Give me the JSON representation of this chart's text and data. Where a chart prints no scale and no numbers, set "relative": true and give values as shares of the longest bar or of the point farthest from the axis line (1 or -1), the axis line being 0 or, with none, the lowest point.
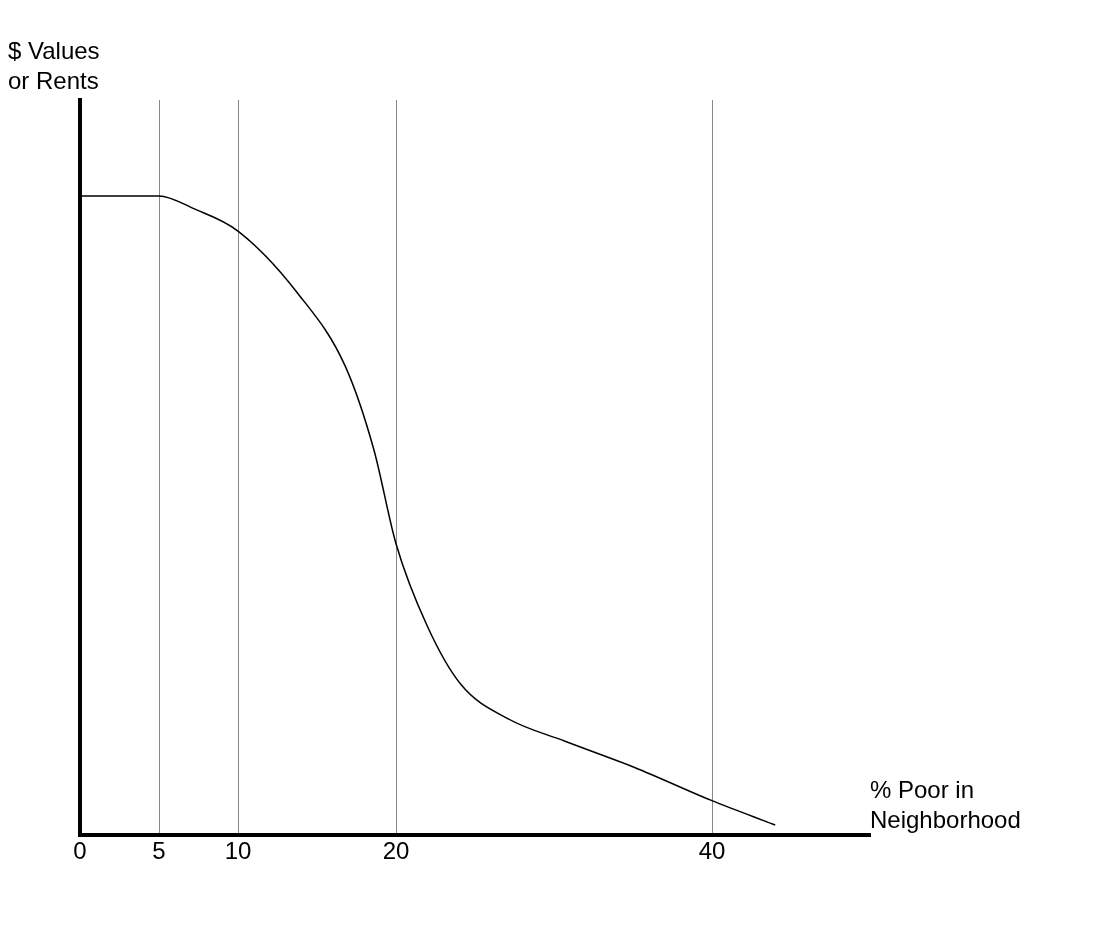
{
  "chart_data": {
    "type": "line",
    "xlabel": "% Poor in\nNeighborhood",
    "ylabel": "$ Values\nor Rents",
    "relative": true,
    "xlim": [
      0,
      50
    ],
    "xticks": [
      0,
      5,
      10,
      20,
      40
    ],
    "grid": "x",
    "legend": false,
    "marker": "none",
    "line_style": "solid",
    "series": [
      {
        "color": "#000000",
        "x": [
          0,
          5,
          7.2,
          10,
          13.8,
          16.8,
          18.6,
          20,
          22.0,
          24.1,
          27.1,
          30.7,
          35.1,
          40,
          44
        ],
        "values": [
          1.0,
          1.0,
          0.98,
          0.945,
          0.847,
          0.733,
          0.603,
          0.456,
          0.326,
          0.236,
          0.182,
          0.147,
          0.106,
          0.054,
          0.016
        ]
      }
    ]
  }
}
